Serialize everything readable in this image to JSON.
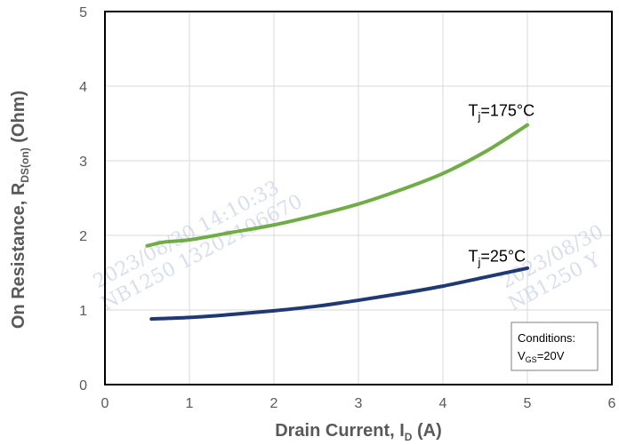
{
  "chart_data": {
    "type": "line",
    "xlabel": {
      "main": "Drain Current, I",
      "sub": "D",
      "unit": " (A)"
    },
    "ylabel": {
      "main": "On Resistance, R",
      "sub": "DS(on)",
      "unit": " (Ohm)"
    },
    "xlim": [
      0,
      6
    ],
    "ylim": [
      0,
      5
    ],
    "xticks": [
      "0",
      "1",
      "2",
      "3",
      "4",
      "5",
      "6"
    ],
    "yticks": [
      "0",
      "1",
      "2",
      "3",
      "4",
      "5"
    ],
    "grid": true,
    "series": [
      {
        "name": "Tj=175°C",
        "color": "#70ad47",
        "x": [
          0.5,
          0.7,
          1.0,
          1.5,
          2.0,
          2.5,
          3.0,
          3.5,
          4.0,
          4.5,
          5.0
        ],
        "y": [
          1.86,
          1.91,
          1.94,
          2.04,
          2.14,
          2.27,
          2.42,
          2.61,
          2.83,
          3.12,
          3.48
        ]
      },
      {
        "name": "Tj=25°C",
        "color": "#1f3a73",
        "x": [
          0.55,
          1.0,
          1.5,
          2.0,
          2.5,
          3.0,
          3.5,
          4.0,
          4.5,
          5.0
        ],
        "y": [
          0.88,
          0.9,
          0.94,
          0.99,
          1.05,
          1.13,
          1.22,
          1.32,
          1.44,
          1.56
        ]
      }
    ],
    "annotations": [
      {
        "prefix": "T",
        "sub": "j",
        "suffix": "=175°C",
        "x": 4.3,
        "y": 3.6
      },
      {
        "prefix": "T",
        "sub": "j",
        "suffix": "=25°C",
        "x": 4.3,
        "y": 1.65
      }
    ],
    "conditions": {
      "title": "Conditions:",
      "prefix": "V",
      "sub": "GS",
      "suffix": "=20V"
    },
    "watermark": [
      {
        "line1": "2023/08/30  14:10:33",
        "line2": "NB1250  13202106670"
      },
      {
        "line1": "2023/08/30",
        "line2": "NB1250  Y"
      }
    ]
  }
}
